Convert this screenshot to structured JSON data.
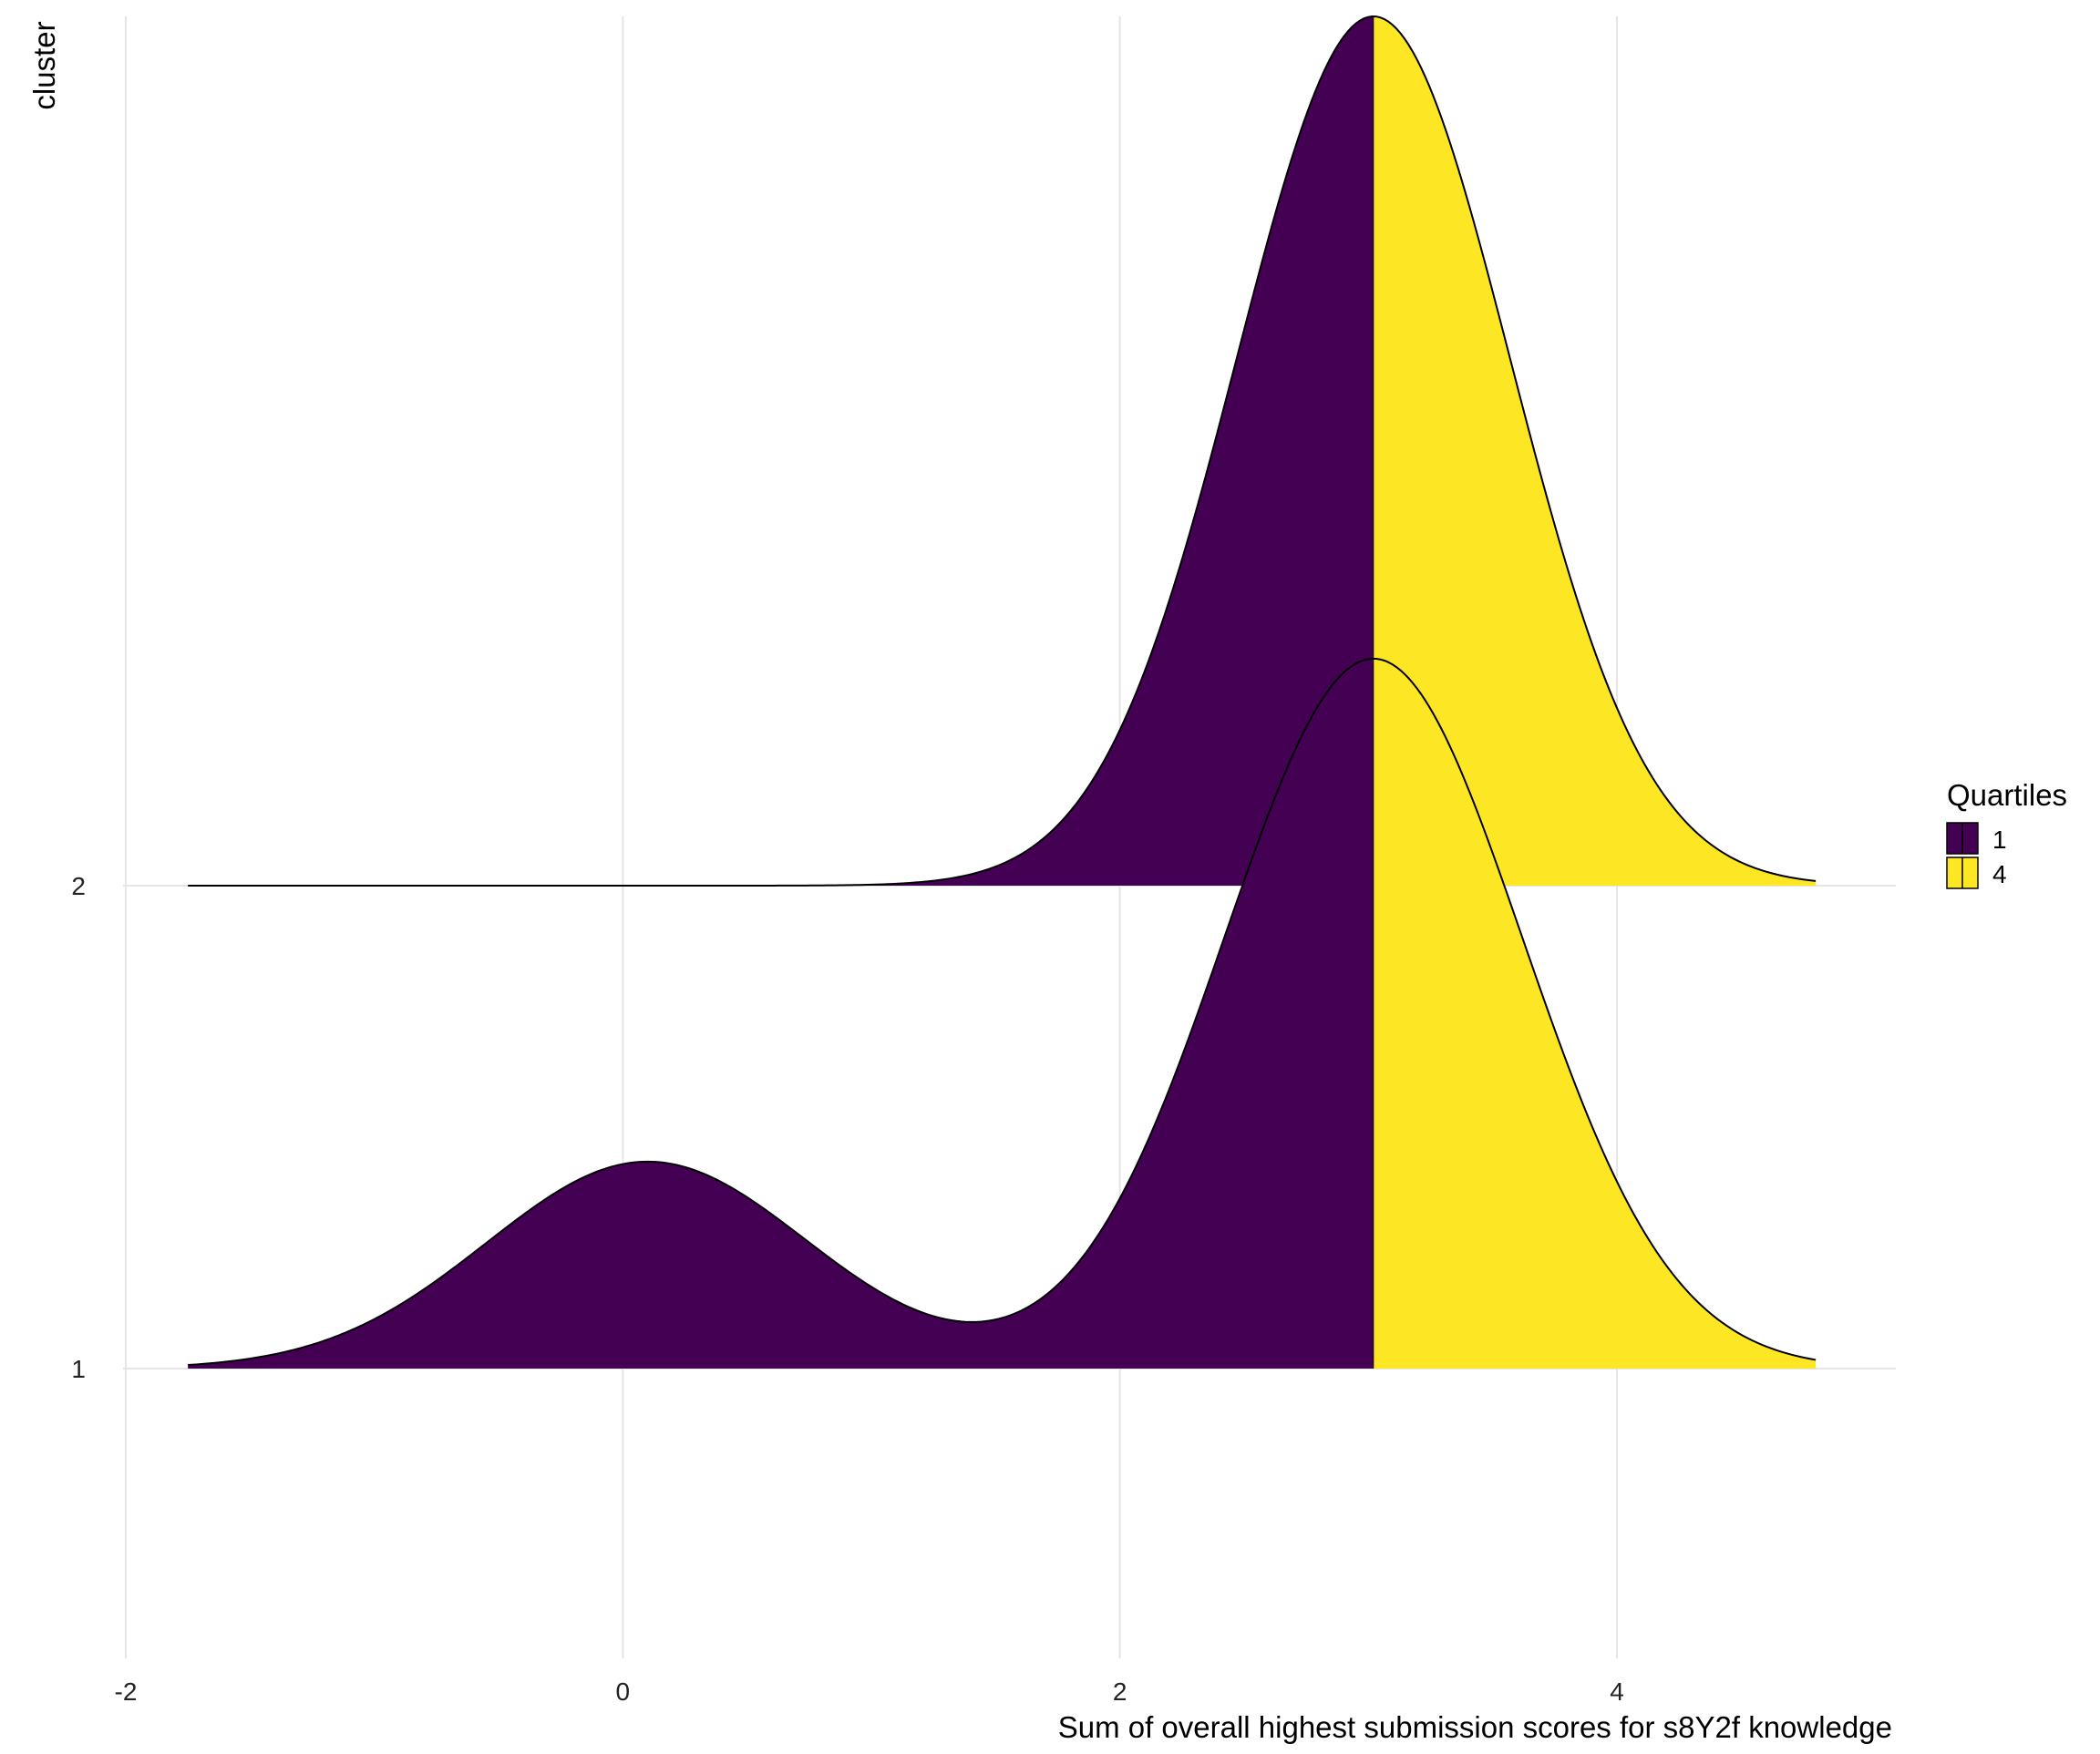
{
  "chart_data": {
    "type": "ridgeline-density",
    "title": "",
    "xlabel": "Sum of overall highest submission scores for s8Y2f knowledge",
    "ylabel": "cluster",
    "xlim": [
      -2,
      5.2
    ],
    "x_ticks": [
      -2,
      0,
      2,
      4
    ],
    "x_tick_labels": [
      "-2",
      "0",
      "2",
      "4"
    ],
    "y_categories": [
      "1",
      "2"
    ],
    "grid": "major gridlines on",
    "legend": {
      "title": "Quartiles",
      "position": "right",
      "entries": [
        {
          "label": "1",
          "color": "#440154"
        },
        {
          "label": "4",
          "color": "#FDE725"
        }
      ]
    },
    "quartile_split_x": 3.02,
    "x_range": [
      -1.75,
      4.8
    ],
    "series": [
      {
        "name": "1",
        "components": [
          {
            "mean": 0.1,
            "sd": 0.65,
            "weight": 0.24
          },
          {
            "mean": 3.02,
            "sd": 0.6,
            "weight": 0.76
          }
        ],
        "peak_height": 1.47
      },
      {
        "name": "2",
        "components": [
          {
            "mean": 3.02,
            "sd": 0.55,
            "weight": 1.0
          }
        ],
        "peak_height": 1.8
      }
    ]
  }
}
